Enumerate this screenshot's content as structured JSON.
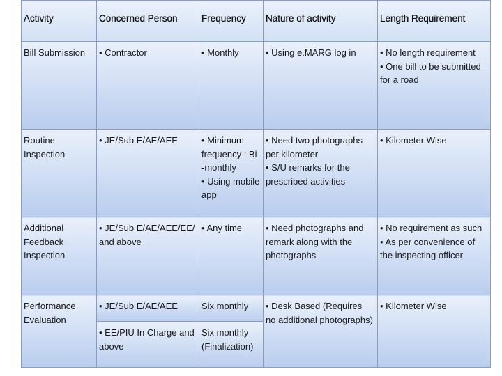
{
  "headers": [
    "Activity",
    "Concerned Person",
    "Frequency",
    "Nature of activity",
    "Length Requirement"
  ],
  "rows": [
    {
      "activity": "Bill Submission",
      "person": [
        "• Contractor"
      ],
      "frequency": [
        "• Monthly"
      ],
      "nature": [
        "• Using e.MARG log in"
      ],
      "length": [
        "• No length requirement",
        "• One bill to be submitted for a road"
      ]
    },
    {
      "activity": "Routine Inspection",
      "person": [
        "• JE/Sub E/AE/AEE"
      ],
      "frequency": [
        "• Minimum frequency : Bi -monthly",
        "• Using mobile app"
      ],
      "nature": [
        "• Need two photographs per kilometer",
        "• S/U remarks for the prescribed activities"
      ],
      "length": [
        "• Kilometer Wise"
      ]
    },
    {
      "activity": "Additional Feedback Inspection",
      "person": [
        "• JE/Sub E/AE/AEE/EE/ and above"
      ],
      "frequency": [
        "• Any time"
      ],
      "nature": [
        "• Need photographs and remark along with the photographs"
      ],
      "length": [
        "• No requirement as such",
        "• As per convenience of the inspecting officer"
      ]
    },
    {
      "activity": "Performance Evaluation",
      "person": [
        "• JE/Sub E/AE/AEE",
        "• EE/PIU In Charge and above"
      ],
      "frequency": [
        "Six monthly",
        "Six monthly (Finalization)"
      ],
      "nature": [
        "• Desk Based (Requires no additional photographs)"
      ],
      "length": [
        "• Kilometer Wise"
      ]
    }
  ]
}
